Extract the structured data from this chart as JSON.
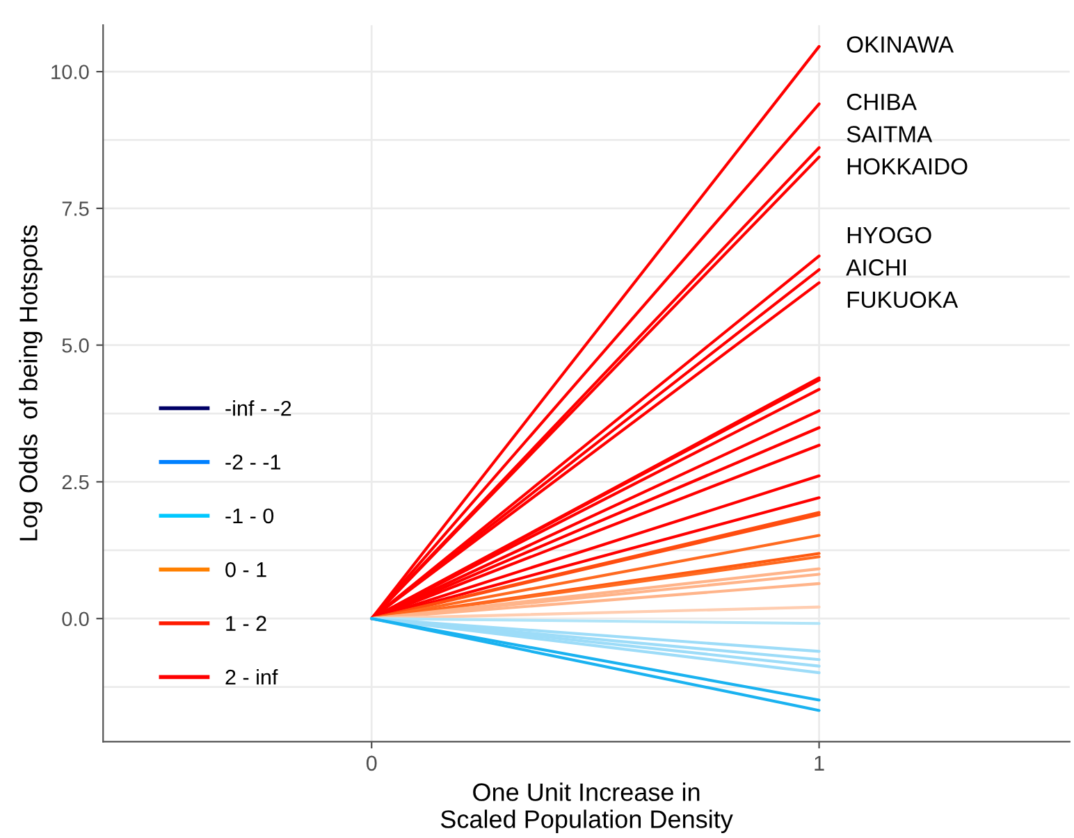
{
  "chart_data": {
    "type": "line",
    "xlabel": "One Unit Increase in\nScaled Population Density",
    "ylabel": "Log Odds  of being Hotspots",
    "x": [
      0,
      1
    ],
    "xlim": [
      -0.6,
      1.56
    ],
    "xticks": [
      0,
      1
    ],
    "ylim": [
      -2.25,
      10.85
    ],
    "yticks": [
      {
        "value": 0,
        "label": "0.0"
      },
      {
        "value": 2.5,
        "label": "2.5"
      },
      {
        "value": 5,
        "label": "5.0"
      },
      {
        "value": 7.5,
        "label": "7.5"
      },
      {
        "value": 10,
        "label": "10.0"
      }
    ],
    "grid": true,
    "legend": "left",
    "marker": "none",
    "line_style": "solid",
    "series": [
      {
        "name": "-inf - -2",
        "color": "#000066",
        "values": [
          null,
          null
        ]
      },
      {
        "name": "-2 - -1",
        "color": "#0080ff",
        "values": [
          null,
          null
        ]
      },
      {
        "name": "-1 - 0",
        "color": "#00c8ff",
        "values": [
          null,
          null
        ]
      },
      {
        "name": "0 - 1",
        "color": "#ff8000",
        "values": [
          null,
          null
        ]
      },
      {
        "name": "1 - 2",
        "color": "#ff1a00",
        "values": [
          null,
          null
        ]
      },
      {
        "name": "2 - inf",
        "color": "#ff0000",
        "values": [
          null,
          null
        ]
      },
      {
        "name": "OKINAWA",
        "color": "#ff0000",
        "values": [
          0,
          10.46
        ]
      },
      {
        "name": "CHIBA",
        "color": "#ff0000",
        "values": [
          0,
          9.41
        ]
      },
      {
        "name": "SAITMA",
        "color": "#ff0000",
        "values": [
          0,
          8.61
        ]
      },
      {
        "name": "HOKKAIDO",
        "color": "#ff0000",
        "values": [
          0,
          8.44
        ]
      },
      {
        "name": "HYOGO",
        "color": "#ff0000",
        "values": [
          0,
          6.63
        ]
      },
      {
        "name": "AICHI",
        "color": "#ff0000",
        "values": [
          0,
          6.38
        ]
      },
      {
        "name": "FUKUOKA",
        "color": "#ff0000",
        "values": [
          0,
          6.14
        ]
      },
      {
        "color": "#ff0000",
        "values": [
          0,
          4.4
        ]
      },
      {
        "color": "#ff0000",
        "values": [
          0,
          4.36
        ]
      },
      {
        "color": "#ff0000",
        "values": [
          0,
          4.19
        ]
      },
      {
        "color": "#ff0000",
        "values": [
          0,
          3.8
        ]
      },
      {
        "color": "#ff0000",
        "values": [
          0,
          3.49
        ]
      },
      {
        "color": "#ff0000",
        "values": [
          0,
          3.17
        ]
      },
      {
        "color": "#ff0000",
        "values": [
          0,
          2.61
        ]
      },
      {
        "color": "#ff0000",
        "values": [
          0,
          2.21
        ]
      },
      {
        "color": "#ff4d10",
        "values": [
          0,
          1.94
        ]
      },
      {
        "color": "#ff4d10",
        "values": [
          0,
          1.9
        ]
      },
      {
        "color": "#ff6a20",
        "values": [
          0,
          1.52
        ]
      },
      {
        "color": "#ff5a10",
        "values": [
          0,
          1.19
        ]
      },
      {
        "color": "#ff6a20",
        "values": [
          0,
          1.13
        ]
      },
      {
        "color": "#ffb48a",
        "values": [
          0,
          0.91
        ]
      },
      {
        "color": "#ffb48a",
        "values": [
          0,
          0.81
        ]
      },
      {
        "color": "#ffb48a",
        "values": [
          0,
          0.64
        ]
      },
      {
        "color": "#ffcdb0",
        "values": [
          0,
          0.21
        ]
      },
      {
        "color": "#b0e4f8",
        "values": [
          0,
          -0.09
        ]
      },
      {
        "color": "#9ddcf8",
        "values": [
          0,
          -0.6
        ]
      },
      {
        "color": "#9ddcf8",
        "values": [
          0,
          -0.75
        ]
      },
      {
        "color": "#9ddcf8",
        "values": [
          0,
          -0.87
        ]
      },
      {
        "color": "#9ddcf8",
        "values": [
          0,
          -0.99
        ]
      },
      {
        "color": "#1ab2f0",
        "values": [
          0,
          -1.49
        ]
      },
      {
        "color": "#1ab2f0",
        "values": [
          0,
          -1.68
        ]
      }
    ]
  }
}
